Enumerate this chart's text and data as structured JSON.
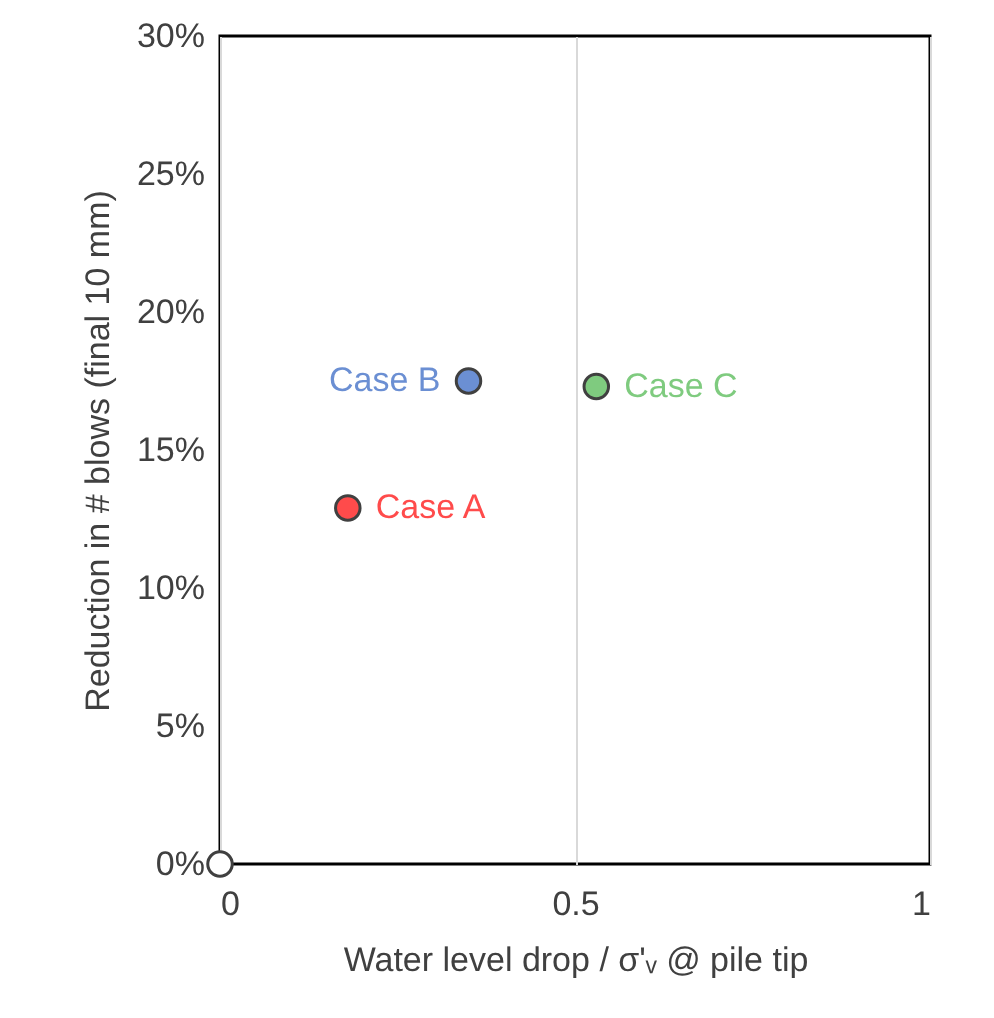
{
  "chart_data": {
    "type": "scatter",
    "xlabel": "Water level drop / σ'ᵥ @ pile tip",
    "ylabel": "Reduction in # blows (final 10 mm)",
    "xlim": [
      0,
      1
    ],
    "xticks": [
      0,
      0.5,
      1
    ],
    "ylim": [
      0,
      30
    ],
    "yticks": [
      {
        "value": 0,
        "label": "0%"
      },
      {
        "value": 5,
        "label": "5%"
      },
      {
        "value": 10,
        "label": "10%"
      },
      {
        "value": 15,
        "label": "15%"
      },
      {
        "value": 20,
        "label": "20%"
      },
      {
        "value": 25,
        "label": "25%"
      },
      {
        "value": 30,
        "label": "30%"
      }
    ],
    "grid": "x",
    "marker": "circle",
    "series": [
      {
        "color": "#ffffff",
        "x": [
          0
        ],
        "values": [
          0
        ]
      },
      {
        "name": "Case A",
        "color": "#ff4b4b",
        "x": [
          0.18
        ],
        "values": [
          12.9
        ]
      },
      {
        "name": "Case B",
        "color": "#6b8fd3",
        "x": [
          0.35
        ],
        "values": [
          17.5
        ]
      },
      {
        "name": "Case C",
        "color": "#7fcb7f",
        "x": [
          0.53
        ],
        "values": [
          17.3
        ]
      }
    ]
  }
}
